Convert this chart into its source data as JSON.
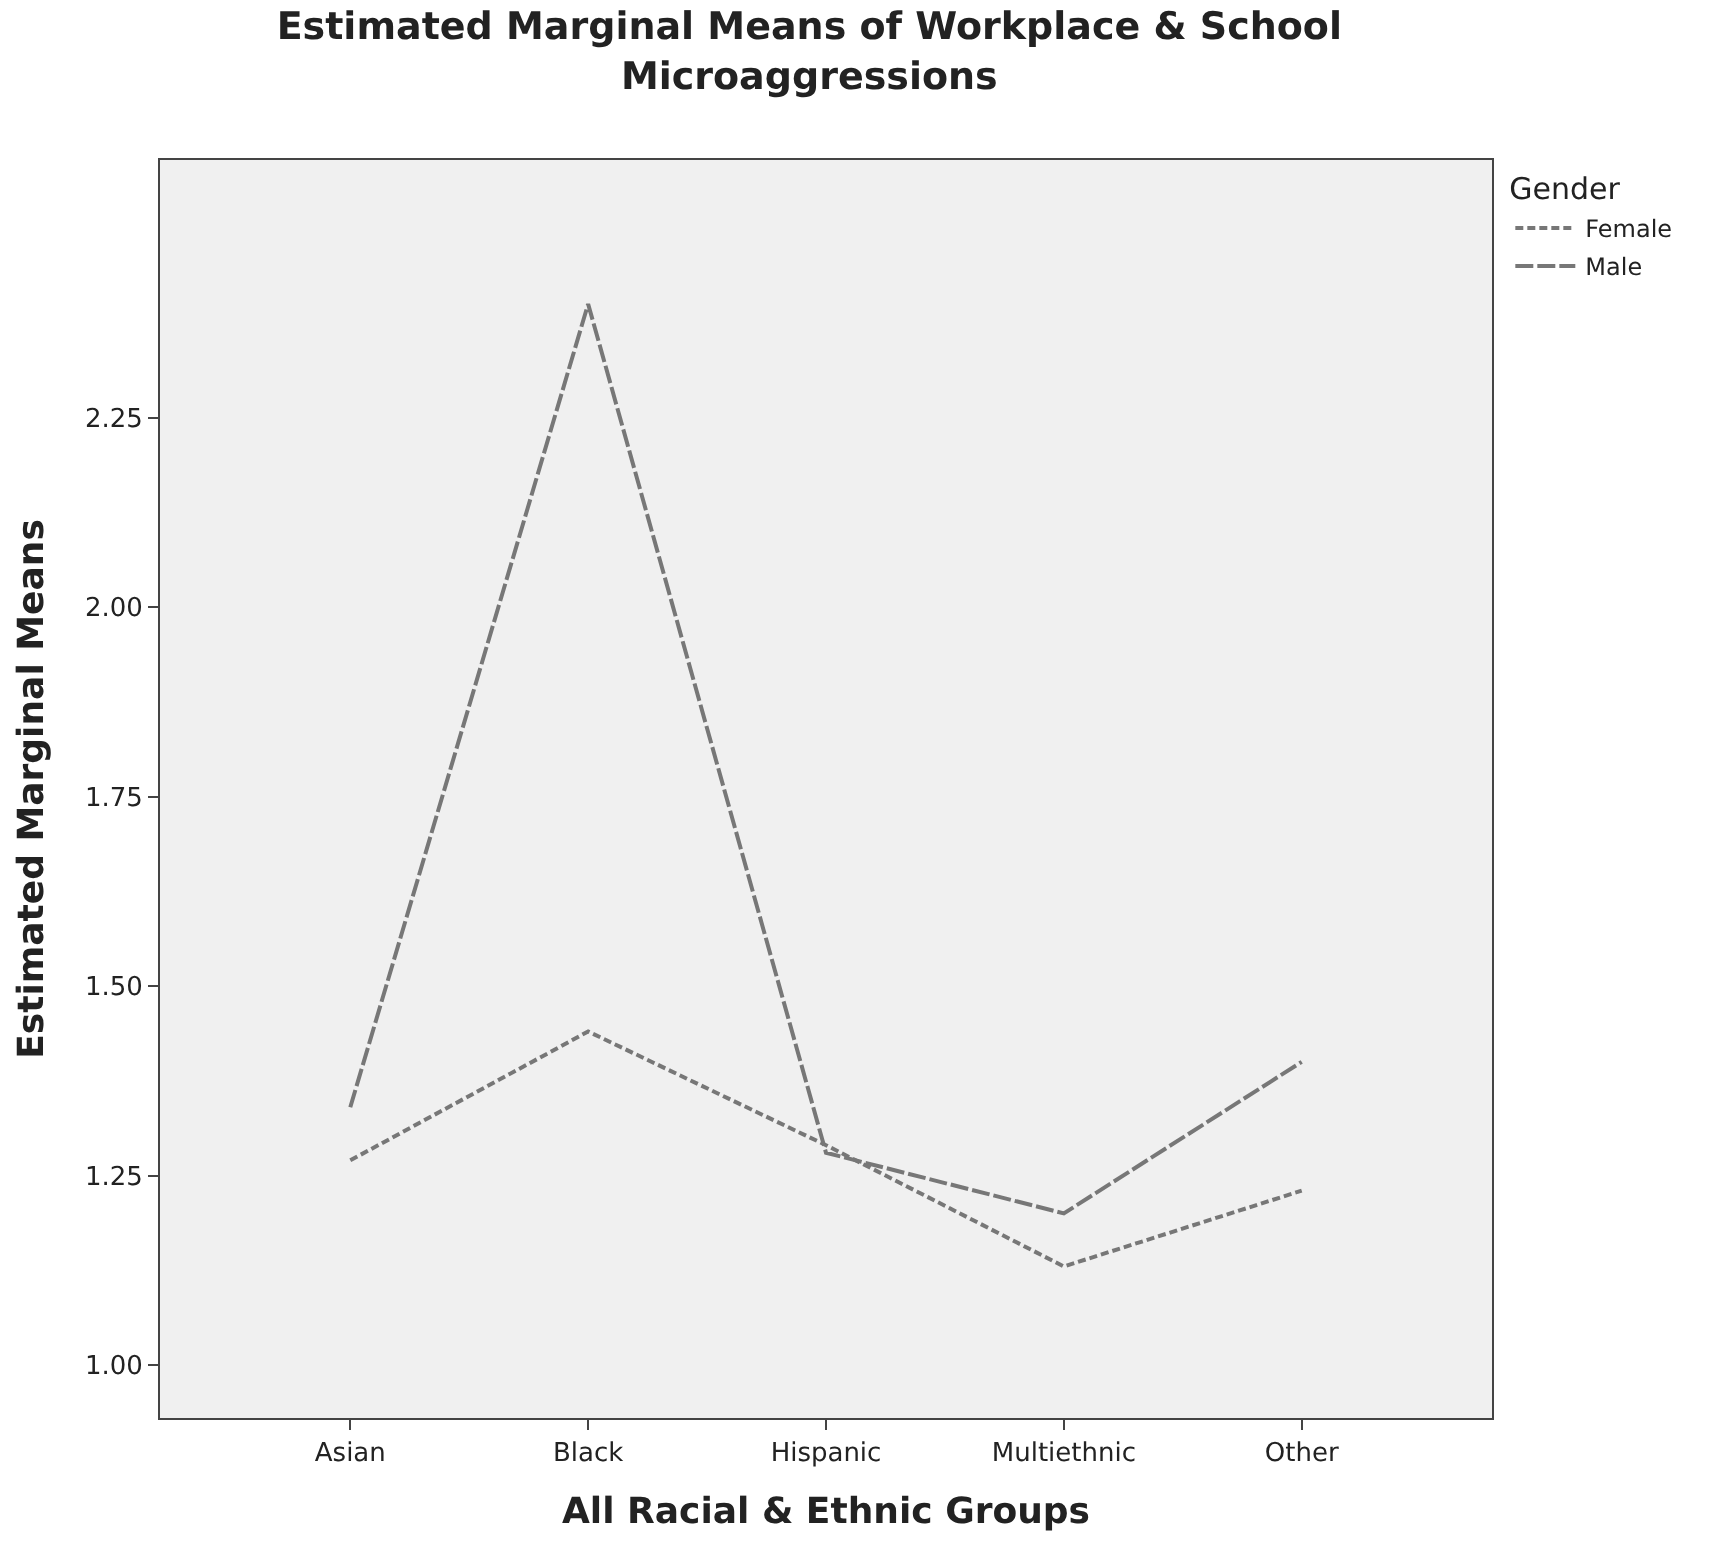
{
  "chart_data": {
    "type": "line",
    "title": "Estimated Marginal Means of Workplace & School Microaggressions",
    "xlabel": "All Racial & Ethnic Groups",
    "ylabel": "Estimated Marginal Means",
    "legend_title": "Gender",
    "categories": [
      "Asian",
      "Black",
      "Hispanic",
      "Multiethnic",
      "Other"
    ],
    "series": [
      {
        "name": "Female",
        "color": "#777777",
        "line_style": "dotted",
        "values": [
          1.27,
          1.44,
          1.29,
          1.13,
          1.23
        ]
      },
      {
        "name": "Male",
        "color": "#777777",
        "line_style": "dashed",
        "values": [
          1.34,
          2.4,
          1.28,
          1.2,
          1.4
        ]
      }
    ],
    "ylim": [
      0.93,
      2.59
    ],
    "yticks": [
      {
        "value": 1,
        "label": "1.00"
      },
      {
        "value": 1.25,
        "label": "1.25"
      },
      {
        "value": 1.5,
        "label": "1.50"
      },
      {
        "value": 1.75,
        "label": "1.75"
      },
      {
        "value": 2,
        "label": "2.00"
      },
      {
        "value": 2.25,
        "label": "2.25"
      }
    ],
    "grid": false,
    "legend": "top right",
    "marker": "none"
  }
}
